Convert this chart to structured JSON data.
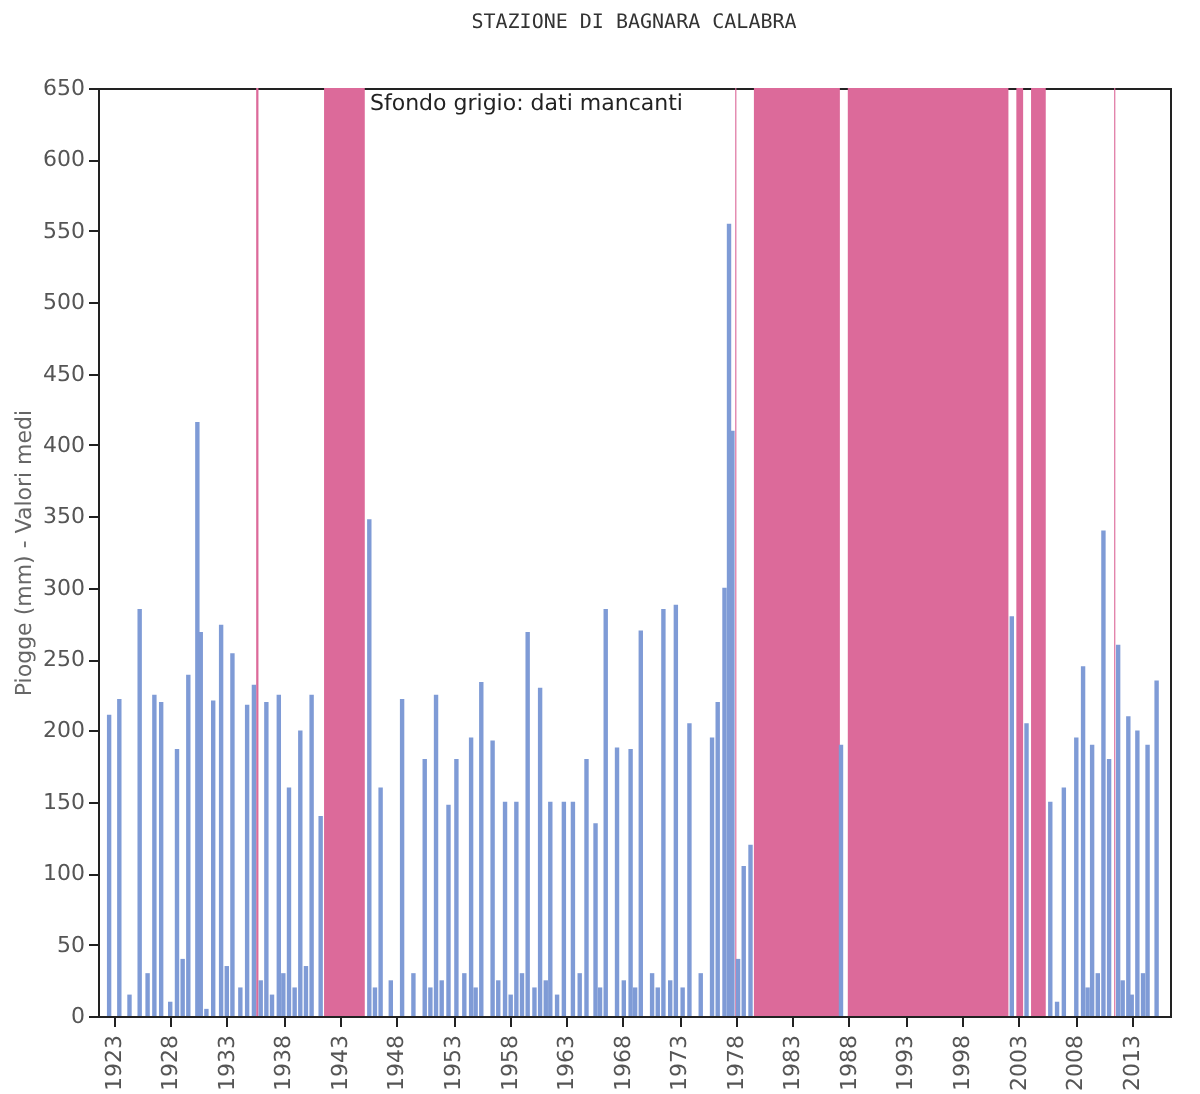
{
  "chart_data": {
    "type": "bar",
    "title": "STAZIONE DI BAGNARA CALABRA",
    "ylabel": "Piogge (mm) - Valori medi",
    "annotations": [
      "Sfondo grigio: dati mancanti"
    ],
    "x": [
      1922.6,
      1923.5,
      1924.4,
      1925.3,
      1926.0,
      1926.6,
      1927.2,
      1928.0,
      1928.6,
      1929.1,
      1929.6,
      1930.4,
      1930.7,
      1931.2,
      1931.8,
      1932.5,
      1933.0,
      1933.5,
      1934.2,
      1934.8,
      1935.4,
      1936.0,
      1936.5,
      1937.0,
      1937.6,
      1938.0,
      1938.5,
      1939.0,
      1939.5,
      1940.0,
      1940.5,
      1941.3,
      1945.6,
      1946.1,
      1946.6,
      1947.5,
      1948.5,
      1949.5,
      1950.5,
      1951.0,
      1951.5,
      1952.0,
      1952.6,
      1953.3,
      1954.0,
      1954.6,
      1955.0,
      1955.5,
      1956.5,
      1957.0,
      1957.6,
      1958.1,
      1958.6,
      1959.1,
      1959.6,
      1960.2,
      1960.7,
      1961.2,
      1961.6,
      1962.2,
      1962.8,
      1963.6,
      1964.2,
      1964.8,
      1965.6,
      1966.0,
      1966.5,
      1967.5,
      1968.1,
      1968.7,
      1969.1,
      1969.6,
      1970.6,
      1971.1,
      1971.6,
      1972.2,
      1972.7,
      1973.3,
      1973.9,
      1974.9,
      1975.9,
      1976.4,
      1977.0,
      1977.4,
      1977.7,
      1978.2,
      1978.7,
      1979.3,
      1987.3,
      2002.4,
      2003.7,
      2005.8,
      2006.4,
      2007.0,
      2008.1,
      2008.7,
      2009.1,
      2009.5,
      2010.0,
      2010.5,
      2011.0,
      2011.8,
      2012.2,
      2012.7,
      2013.0,
      2013.5,
      2014.0,
      2014.4,
      2015.2
    ],
    "series": [
      {
        "color": "#7f9bd6",
        "values": [
          211,
          222,
          15,
          285,
          30,
          225,
          220,
          10,
          187,
          40,
          239,
          416,
          269,
          5,
          221,
          274,
          35,
          254,
          20,
          218,
          232,
          25,
          220,
          15,
          225,
          30,
          160,
          20,
          200,
          35,
          225,
          140,
          348,
          20,
          160,
          25,
          222,
          30,
          180,
          20,
          225,
          25,
          148,
          180,
          30,
          195,
          20,
          234,
          193,
          25,
          150,
          15,
          150,
          30,
          269,
          20,
          230,
          25,
          150,
          15,
          150,
          150,
          30,
          180,
          135,
          20,
          285,
          188,
          25,
          187,
          20,
          270,
          30,
          20,
          285,
          25,
          288,
          20,
          205,
          30,
          195,
          220,
          300,
          555,
          410,
          40,
          105,
          120,
          190,
          280,
          205,
          150,
          10,
          160,
          195,
          245,
          20,
          190,
          30,
          340,
          180,
          260,
          25,
          210,
          15,
          200,
          30,
          190,
          235
        ]
      }
    ],
    "bands": [
      {
        "axis": "x",
        "from": 1935.6,
        "to": 1935.8,
        "color": "#dc6a9a"
      },
      {
        "axis": "x",
        "from": 1941.6,
        "to": 1945.2,
        "color": "#dc6a9a"
      },
      {
        "axis": "x",
        "from": 1977.95,
        "to": 1978.05,
        "color": "#dc6a9a"
      },
      {
        "axis": "x",
        "from": 1979.6,
        "to": 1987.2,
        "color": "#dc6a9a"
      },
      {
        "axis": "x",
        "from": 1987.9,
        "to": 2002.1,
        "color": "#dc6a9a"
      },
      {
        "axis": "x",
        "from": 2002.8,
        "to": 2003.4,
        "color": "#dc6a9a"
      },
      {
        "axis": "x",
        "from": 2004.1,
        "to": 2005.4,
        "color": "#dc6a9a"
      },
      {
        "axis": "x",
        "from": 2011.45,
        "to": 2011.55,
        "color": "#dc6a9a"
      }
    ],
    "xlim": [
      1922.5,
      2015.5
    ],
    "xticks": [
      1923,
      1928,
      1933,
      1938,
      1943,
      1948,
      1953,
      1958,
      1963,
      1968,
      1973,
      1978,
      1983,
      1988,
      1993,
      1998,
      2003,
      2008,
      2013
    ],
    "ylim": [
      0,
      650
    ],
    "yticks": [
      0,
      50,
      100,
      150,
      200,
      250,
      300,
      350,
      400,
      450,
      500,
      550,
      600,
      650
    ]
  }
}
